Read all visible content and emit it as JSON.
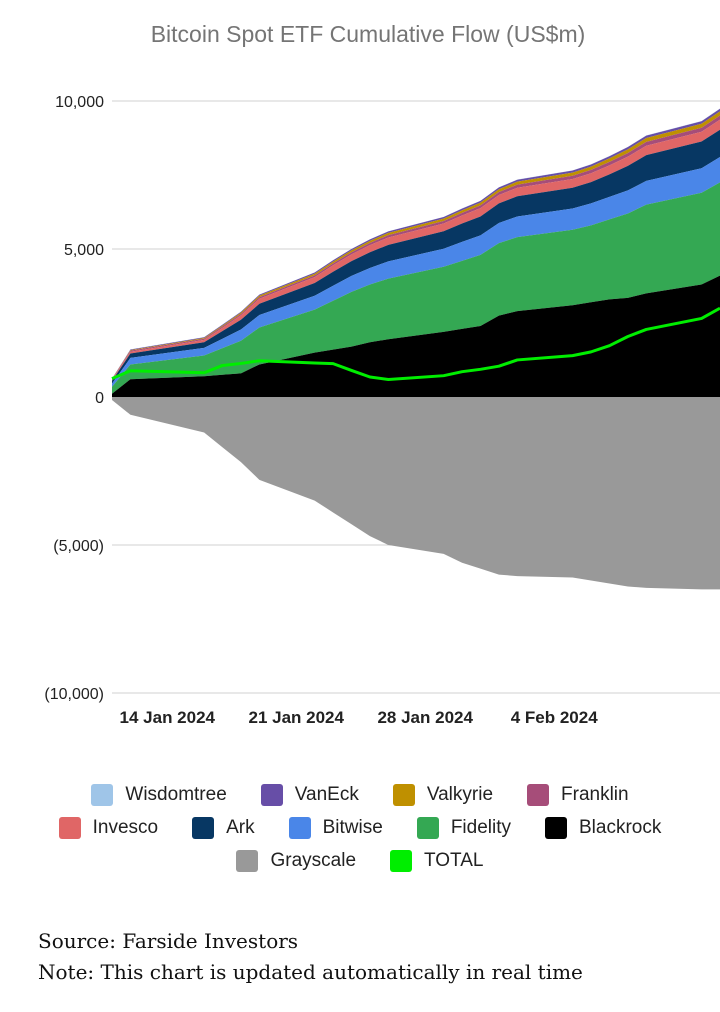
{
  "chart_data": {
    "type": "area",
    "title": "Bitcoin Spot ETF Cumulative Flow (US$m)",
    "ylim": [
      -10000,
      10000
    ],
    "yticks": [
      10000,
      5000,
      0,
      -5000,
      -10000
    ],
    "ytick_labels": [
      "10,000",
      "5,000",
      "0",
      "(5,000)",
      "(10,000)"
    ],
    "x_range": [
      "2024-01-11",
      "2024-02-13"
    ],
    "xticks": [
      "2024-01-14",
      "2024-01-21",
      "2024-01-28",
      "2024-02-04"
    ],
    "xtick_labels": [
      "14 Jan 2024",
      "21 Jan 2024",
      "28 Jan 2024",
      "4 Feb 2024"
    ],
    "x": [
      "2024-01-11",
      "2024-01-12",
      "2024-01-16",
      "2024-01-17",
      "2024-01-18",
      "2024-01-19",
      "2024-01-22",
      "2024-01-23",
      "2024-01-24",
      "2024-01-25",
      "2024-01-26",
      "2024-01-29",
      "2024-01-30",
      "2024-01-31",
      "2024-02-01",
      "2024-02-02",
      "2024-02-05",
      "2024-02-06",
      "2024-02-07",
      "2024-02-08",
      "2024-02-09",
      "2024-02-12",
      "2024-02-13"
    ],
    "stack_order": [
      "Blackrock",
      "Fidelity",
      "Bitwise",
      "Ark",
      "Invesco",
      "Franklin",
      "Valkyrie",
      "VanEck",
      "Wisdomtree"
    ],
    "series": [
      {
        "name": "Wisdomtree",
        "color": "#9fc5e8",
        "values": [
          1,
          2,
          3,
          3,
          3,
          3,
          4,
          4,
          4,
          5,
          5,
          5,
          6,
          6,
          6,
          6,
          6,
          7,
          7,
          7,
          7,
          8,
          8
        ]
      },
      {
        "name": "VanEck",
        "color": "#674ea7",
        "values": [
          10,
          20,
          25,
          30,
          30,
          35,
          40,
          45,
          45,
          50,
          50,
          55,
          60,
          60,
          60,
          65,
          70,
          70,
          75,
          80,
          80,
          85,
          90
        ]
      },
      {
        "name": "Valkyrie",
        "color": "#bf9000",
        "values": [
          10,
          20,
          25,
          30,
          40,
          50,
          55,
          60,
          65,
          70,
          75,
          80,
          85,
          90,
          95,
          100,
          105,
          110,
          115,
          120,
          130,
          135,
          140
        ]
      },
      {
        "name": "Franklin",
        "color": "#a64d79",
        "values": [
          20,
          35,
          40,
          45,
          50,
          55,
          60,
          65,
          70,
          75,
          80,
          85,
          90,
          95,
          100,
          105,
          110,
          115,
          120,
          125,
          130,
          135,
          140
        ]
      },
      {
        "name": "Invesco",
        "color": "#e06666",
        "values": [
          30,
          60,
          80,
          110,
          150,
          170,
          200,
          220,
          230,
          240,
          250,
          260,
          270,
          280,
          285,
          290,
          295,
          300,
          305,
          310,
          320,
          330,
          340
        ]
      },
      {
        "name": "Ark",
        "color": "#073763",
        "values": [
          100,
          150,
          190,
          260,
          330,
          380,
          430,
          470,
          500,
          530,
          560,
          590,
          620,
          640,
          660,
          680,
          700,
          720,
          760,
          830,
          870,
          900,
          920
        ]
      },
      {
        "name": "Bitwise",
        "color": "#4a86e8",
        "values": [
          110,
          220,
          260,
          320,
          380,
          420,
          470,
          510,
          540,
          560,
          580,
          610,
          640,
          660,
          680,
          700,
          720,
          740,
          760,
          780,
          800,
          830,
          860
        ]
      },
      {
        "name": "Fidelity",
        "color": "#34a853",
        "values": [
          230,
          500,
          700,
          900,
          1100,
          1250,
          1450,
          1650,
          1850,
          1950,
          2050,
          2200,
          2300,
          2400,
          2450,
          2500,
          2550,
          2600,
          2700,
          2850,
          3000,
          3100,
          3150
        ]
      },
      {
        "name": "Blackrock",
        "color": "#000000",
        "values": [
          110,
          600,
          700,
          750,
          800,
          1100,
          1500,
          1600,
          1700,
          1850,
          1950,
          2200,
          2300,
          2400,
          2750,
          2900,
          3100,
          3200,
          3300,
          3350,
          3500,
          3800,
          4100
        ]
      },
      {
        "name": "Grayscale",
        "color": "#999999",
        "values": [
          -100,
          -600,
          -1200,
          -1700,
          -2200,
          -2800,
          -3500,
          -3900,
          -4300,
          -4700,
          -5000,
          -5300,
          -5600,
          -5800,
          -6000,
          -6050,
          -6100,
          -6200,
          -6300,
          -6400,
          -6450,
          -6500,
          -6500
        ]
      },
      {
        "name": "TOTAL",
        "color": "#00ee00",
        "values": [
          621,
          887,
          818,
          1066,
          1134,
          1226,
          1149,
          1128,
          897,
          676,
          591,
          720,
          855,
          935,
          1041,
          1252,
          1398,
          1525,
          1734,
          2043,
          2282,
          2655,
          3000
        ]
      }
    ],
    "legend_position": "bottom"
  },
  "legend_rows": [
    [
      {
        "label": "Wisdomtree",
        "color": "#9fc5e8"
      },
      {
        "label": "VanEck",
        "color": "#674ea7"
      },
      {
        "label": "Valkyrie",
        "color": "#bf9000"
      },
      {
        "label": "Franklin",
        "color": "#a64d79"
      }
    ],
    [
      {
        "label": "Invesco",
        "color": "#e06666"
      },
      {
        "label": "Ark",
        "color": "#073763"
      },
      {
        "label": "Bitwise",
        "color": "#4a86e8"
      },
      {
        "label": "Fidelity",
        "color": "#34a853"
      },
      {
        "label": "Blackrock",
        "color": "#000000"
      }
    ],
    [
      {
        "label": "Grayscale",
        "color": "#999999"
      },
      {
        "label": "TOTAL",
        "color": "#00ee00"
      }
    ]
  ],
  "footnotes": {
    "source": "Source: Farside Investors",
    "note": "Note: This chart is updated automatically in real time"
  }
}
